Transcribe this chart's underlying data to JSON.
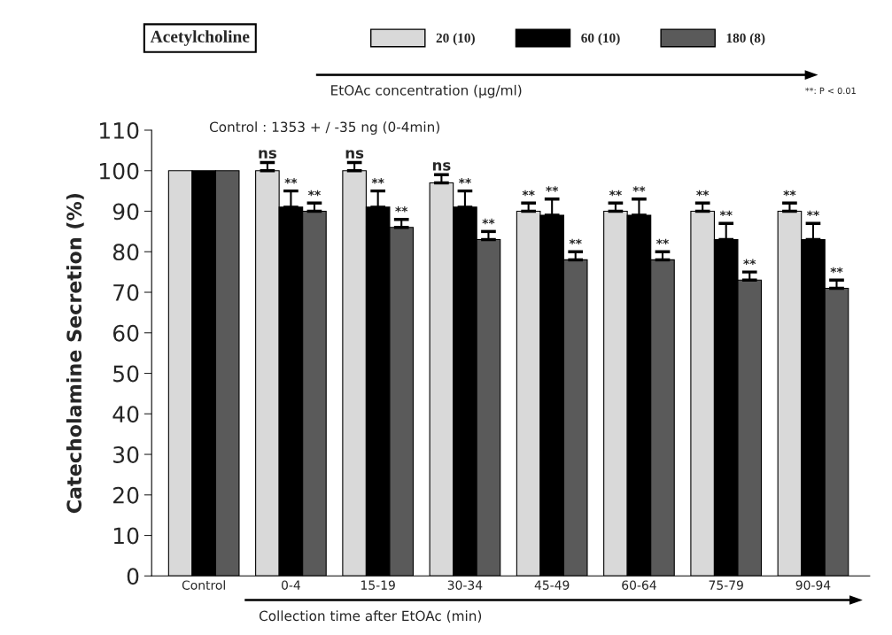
{
  "chart_data": {
    "type": "bar",
    "ylabel": "Catecholamine Secretion (%)",
    "xlabel": "Collection time after EtOAc (min)",
    "legend_title": "Acetylcholine",
    "legend": "top",
    "categories": [
      "Control",
      "0-4",
      "15-19",
      "30-34",
      "45-49",
      "60-64",
      "75-79",
      "90-94"
    ],
    "series": [
      {
        "name": "20 (10)",
        "color": "#d9d9d9",
        "values": [
          100,
          100,
          100,
          97,
          90,
          90,
          90,
          90
        ],
        "errors": [
          null,
          [
            100,
            102
          ],
          [
            100,
            102
          ],
          [
            97,
            99
          ],
          [
            90,
            92
          ],
          [
            90,
            92
          ],
          [
            90,
            92
          ],
          [
            90,
            92
          ]
        ],
        "value_labels": [
          null,
          "ns",
          "ns",
          "ns",
          "**",
          "**",
          "**",
          "**"
        ]
      },
      {
        "name": "60 (10)",
        "color": "#000000",
        "values": [
          100,
          91,
          91,
          91,
          89,
          89,
          83,
          83
        ],
        "errors": [
          null,
          [
            91,
            95
          ],
          [
            91,
            95
          ],
          [
            91,
            95
          ],
          [
            89,
            93
          ],
          [
            89,
            93
          ],
          [
            83,
            87
          ],
          [
            83,
            87
          ]
        ],
        "value_labels": [
          null,
          "**",
          "**",
          "**",
          "**",
          "**",
          "**",
          "**"
        ]
      },
      {
        "name": "180 (8)",
        "color": "#5a5a5a",
        "values": [
          100,
          90,
          86,
          83,
          78,
          78,
          73,
          71
        ],
        "errors": [
          null,
          [
            90,
            92
          ],
          [
            86,
            88
          ],
          [
            83,
            85
          ],
          [
            78,
            80
          ],
          [
            78,
            80
          ],
          [
            73,
            75
          ],
          [
            71,
            73
          ]
        ],
        "value_labels": [
          null,
          "**",
          "**",
          "**",
          "**",
          "**",
          "**",
          "**"
        ]
      }
    ],
    "ylim": [
      0,
      110
    ],
    "yticks": [
      0,
      10,
      20,
      30,
      40,
      50,
      60,
      70,
      80,
      90,
      100,
      110
    ],
    "grid": false,
    "annotations": [
      "Control : 1353 + / -35 ng (0-4min)",
      "EtOAc concentration (µg/ml)",
      "**: P < 0.01"
    ]
  }
}
